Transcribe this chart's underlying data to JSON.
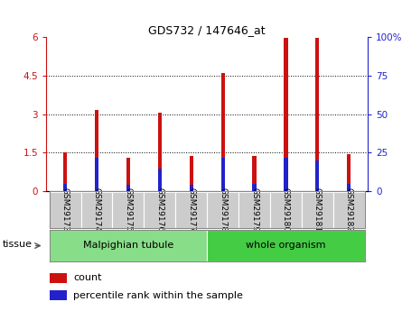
{
  "title": "GDS732 / 147646_at",
  "samples": [
    "GSM29173",
    "GSM29174",
    "GSM29175",
    "GSM29176",
    "GSM29177",
    "GSM29178",
    "GSM29179",
    "GSM29180",
    "GSM29181",
    "GSM29182"
  ],
  "count_values": [
    1.52,
    3.18,
    1.32,
    3.05,
    1.38,
    4.62,
    1.38,
    5.97,
    5.97,
    1.43
  ],
  "percentile_values": [
    5,
    22,
    4,
    15,
    4,
    22,
    5,
    22,
    20,
    5
  ],
  "ylim_left": [
    0,
    6
  ],
  "ylim_right": [
    0,
    100
  ],
  "yticks_left": [
    0,
    1.5,
    3.0,
    4.5,
    6.0
  ],
  "ytick_labels_left": [
    "0",
    "1.5",
    "3",
    "4.5",
    "6"
  ],
  "yticks_right": [
    0,
    25,
    50,
    75,
    100
  ],
  "ytick_labels_right": [
    "0",
    "25",
    "50",
    "75",
    "100%"
  ],
  "bar_width": 0.12,
  "count_color": "#cc1111",
  "percentile_color": "#2222cc",
  "tissue_groups": [
    {
      "label": "Malpighian tubule",
      "start": 0,
      "end": 5,
      "color": "#88dd88"
    },
    {
      "label": "whole organism",
      "start": 5,
      "end": 10,
      "color": "#44cc44"
    }
  ],
  "tissue_label": "tissue",
  "legend_items": [
    {
      "label": "count",
      "color": "#cc1111"
    },
    {
      "label": "percentile rank within the sample",
      "color": "#2222cc"
    }
  ],
  "left_axis_color": "#cc1111",
  "right_axis_color": "#2222cc",
  "tick_bg_color": "#cccccc",
  "border_color": "#888888"
}
